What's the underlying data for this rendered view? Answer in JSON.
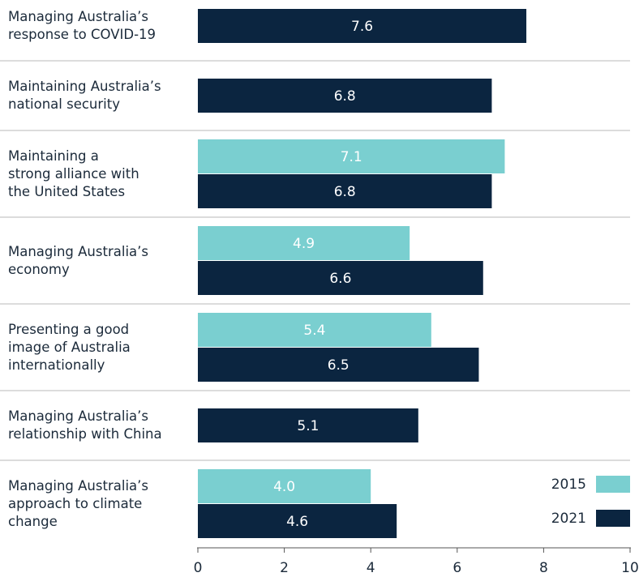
{
  "chart_data": {
    "type": "bar",
    "orientation": "horizontal",
    "categories": [
      "Managing Australia’s\nresponse to COVID-19",
      "Maintaining Australia’s\nnational security",
      "Maintaining a\nstrong alliance with\nthe United States",
      "Managing Australia’s\neconomy",
      "Presenting a good\nimage of Australia\ninternationally",
      "Managing Australia’s\nrelationship with China",
      "Managing Australia’s\napproach to climate\nchange"
    ],
    "series": [
      {
        "name": "2015",
        "color": "#7acfd0",
        "values": [
          null,
          null,
          7.1,
          4.9,
          5.4,
          null,
          4.0
        ],
        "value_labels": [
          null,
          null,
          "7.1",
          "4.9",
          "5.4",
          null,
          "4.0"
        ]
      },
      {
        "name": "2021",
        "color": "#0b2540",
        "values": [
          7.6,
          6.8,
          6.8,
          6.6,
          6.5,
          5.1,
          4.6
        ],
        "value_labels": [
          "7.6",
          "6.8",
          "6.8",
          "6.6",
          "6.5",
          "5.1",
          "4.6"
        ]
      }
    ],
    "xlim": [
      0,
      10
    ],
    "xticks": [
      0,
      2,
      4,
      6,
      8,
      10
    ],
    "legend": "lower right"
  }
}
